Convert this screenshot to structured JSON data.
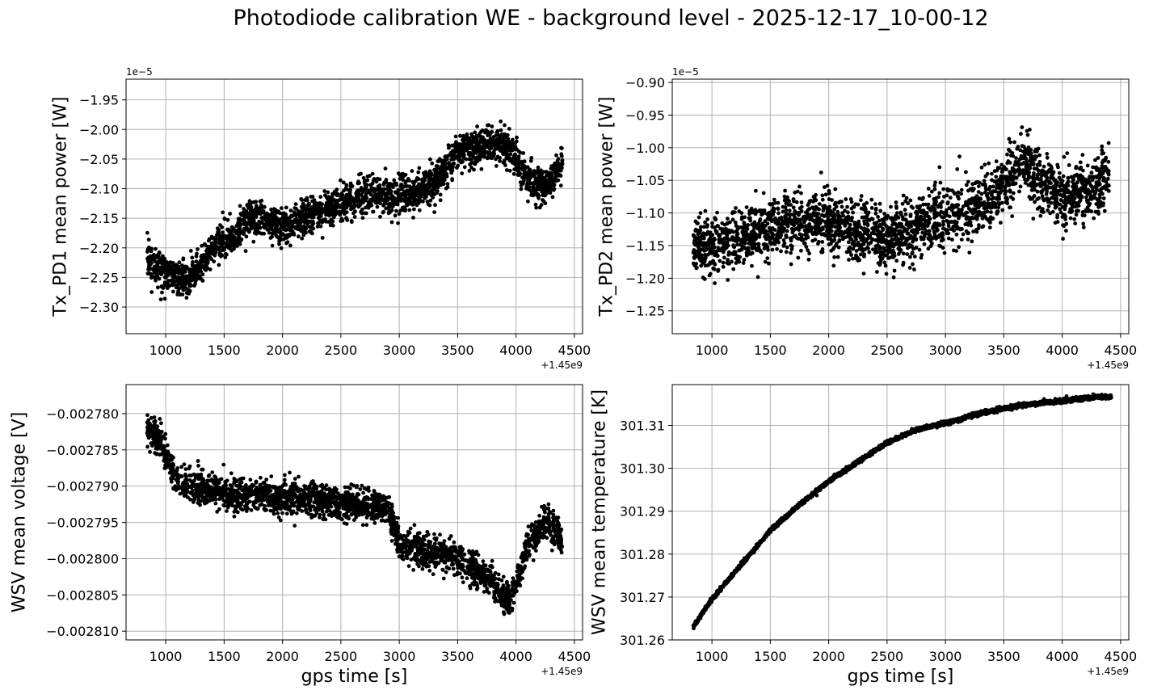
{
  "figure": {
    "title": "Photodiode calibration WE - background level - 2025-12-17_10-00-12",
    "marker_color": "#000000",
    "grid_color": "#b0b0b0"
  },
  "chart_data": [
    {
      "type": "scatter",
      "title": "",
      "xlabel": "",
      "ylabel": "Tx_PD1 mean power [W]",
      "x_offset_label": "+1.45e9",
      "y_offset_label": "1e−5",
      "xlim": [
        660,
        4570
      ],
      "ylim": [
        -2.345,
        -1.915
      ],
      "x_ticks": [
        1000,
        1500,
        2000,
        2500,
        3000,
        3500,
        4000,
        4500
      ],
      "x_tick_labels": [
        "1000",
        "1500",
        "2000",
        "2500",
        "3000",
        "3500",
        "4000",
        "4500"
      ],
      "y_ticks": [
        -2.3,
        -2.25,
        -2.2,
        -2.15,
        -2.1,
        -2.05,
        -2.0,
        -1.95
      ],
      "y_tick_labels": [
        "−2.30",
        "−2.25",
        "−2.20",
        "−2.15",
        "−2.10",
        "−2.05",
        "−2.00",
        "−1.95"
      ],
      "grid": true,
      "trend": [
        [
          840,
          -2.215
        ],
        [
          1000,
          -2.245
        ],
        [
          1200,
          -2.255
        ],
        [
          1300,
          -2.23
        ],
        [
          1450,
          -2.19
        ],
        [
          1600,
          -2.18
        ],
        [
          1700,
          -2.15
        ],
        [
          2000,
          -2.165
        ],
        [
          2200,
          -2.15
        ],
        [
          2500,
          -2.125
        ],
        [
          2700,
          -2.11
        ],
        [
          3000,
          -2.115
        ],
        [
          3300,
          -2.09
        ],
        [
          3500,
          -2.04
        ],
        [
          3750,
          -2.025
        ],
        [
          3950,
          -2.03
        ],
        [
          4100,
          -2.09
        ],
        [
          4250,
          -2.095
        ],
        [
          4400,
          -2.06
        ]
      ],
      "noise": 0.03,
      "n_points": 2600
    },
    {
      "type": "scatter",
      "title": "",
      "xlabel": "",
      "ylabel": "Tx_PD2 mean power [W]",
      "x_offset_label": "+1.45e9",
      "y_offset_label": "1e−5",
      "xlim": [
        660,
        4570
      ],
      "ylim": [
        -1.285,
        -0.895
      ],
      "x_ticks": [
        1000,
        1500,
        2000,
        2500,
        3000,
        3500,
        4000,
        4500
      ],
      "x_tick_labels": [
        "1000",
        "1500",
        "2000",
        "2500",
        "3000",
        "3500",
        "4000",
        "4500"
      ],
      "y_ticks": [
        -1.25,
        -1.2,
        -1.15,
        -1.1,
        -1.05,
        -1.0,
        -0.95,
        -0.9
      ],
      "y_tick_labels": [
        "−1.25",
        "−1.20",
        "−1.15",
        "−1.10",
        "−1.05",
        "−1.00",
        "−0.95",
        "−0.90"
      ],
      "grid": true,
      "trend": [
        [
          840,
          -1.15
        ],
        [
          1100,
          -1.15
        ],
        [
          1500,
          -1.12
        ],
        [
          1900,
          -1.11
        ],
        [
          2200,
          -1.13
        ],
        [
          2500,
          -1.14
        ],
        [
          2800,
          -1.12
        ],
        [
          3100,
          -1.1
        ],
        [
          3400,
          -1.08
        ],
        [
          3650,
          -1.02
        ],
        [
          3800,
          -1.05
        ],
        [
          4000,
          -1.07
        ],
        [
          4200,
          -1.07
        ],
        [
          4400,
          -1.04
        ]
      ],
      "noise": 0.045,
      "n_points": 2600
    },
    {
      "type": "scatter",
      "title": "",
      "xlabel": "gps time [s]",
      "ylabel": "WSV mean voltage [V]",
      "x_offset_label": "+1.45e9",
      "y_offset_label": "",
      "xlim": [
        660,
        4570
      ],
      "ylim": [
        -0.0028112,
        -0.002776
      ],
      "x_ticks": [
        1000,
        1500,
        2000,
        2500,
        3000,
        3500,
        4000,
        4500
      ],
      "x_tick_labels": [
        "1000",
        "1500",
        "2000",
        "2500",
        "3000",
        "3500",
        "4000",
        "4500"
      ],
      "y_ticks": [
        -0.00281,
        -0.002805,
        -0.0028,
        -0.002795,
        -0.00279,
        -0.002785,
        -0.00278
      ],
      "y_tick_labels": [
        "−0.002810",
        "−0.002805",
        "−0.002800",
        "−0.002795",
        "−0.002790",
        "−0.002785",
        "−0.002780"
      ],
      "grid": true,
      "trend": [
        [
          840,
          -0.002782
        ],
        [
          950,
          -0.002784
        ],
        [
          1100,
          -0.0027895
        ],
        [
          1500,
          -0.002791
        ],
        [
          2000,
          -0.0027915
        ],
        [
          2500,
          -0.0027925
        ],
        [
          2900,
          -0.002793
        ],
        [
          3000,
          -0.002798
        ],
        [
          3500,
          -0.0028
        ],
        [
          3800,
          -0.002803
        ],
        [
          3950,
          -0.002806
        ],
        [
          4100,
          -0.002798
        ],
        [
          4250,
          -0.002795
        ],
        [
          4400,
          -0.002797
        ]
      ],
      "noise": 2.2e-06,
      "n_points": 2600
    },
    {
      "type": "scatter",
      "title": "",
      "xlabel": "gps time [s]",
      "ylabel": "WSV mean temperature [K]",
      "x_offset_label": "+1.45e9",
      "y_offset_label": "",
      "xlim": [
        660,
        4570
      ],
      "ylim": [
        301.26,
        301.3195
      ],
      "x_ticks": [
        1000,
        1500,
        2000,
        2500,
        3000,
        3500,
        4000,
        4500
      ],
      "x_tick_labels": [
        "1000",
        "1500",
        "2000",
        "2500",
        "3000",
        "3500",
        "4000",
        "4500"
      ],
      "y_ticks": [
        301.26,
        301.27,
        301.28,
        301.29,
        301.3,
        301.31
      ],
      "y_tick_labels": [
        "301.26",
        "301.27",
        "301.28",
        "301.29",
        "301.30",
        "301.31"
      ],
      "grid": true,
      "trend": [
        [
          840,
          301.263
        ],
        [
          1000,
          301.2695
        ],
        [
          1250,
          301.2775
        ],
        [
          1500,
          301.2855
        ],
        [
          1750,
          301.2915
        ],
        [
          2000,
          301.297
        ],
        [
          2250,
          301.3015
        ],
        [
          2500,
          301.306
        ],
        [
          2750,
          301.309
        ],
        [
          3000,
          301.3105
        ],
        [
          3250,
          301.3125
        ],
        [
          3500,
          301.314
        ],
        [
          3750,
          301.315
        ],
        [
          4000,
          301.3157
        ],
        [
          4250,
          301.3165
        ],
        [
          4420,
          301.3166
        ]
      ],
      "noise": 0.00045,
      "n_points": 2600
    }
  ]
}
